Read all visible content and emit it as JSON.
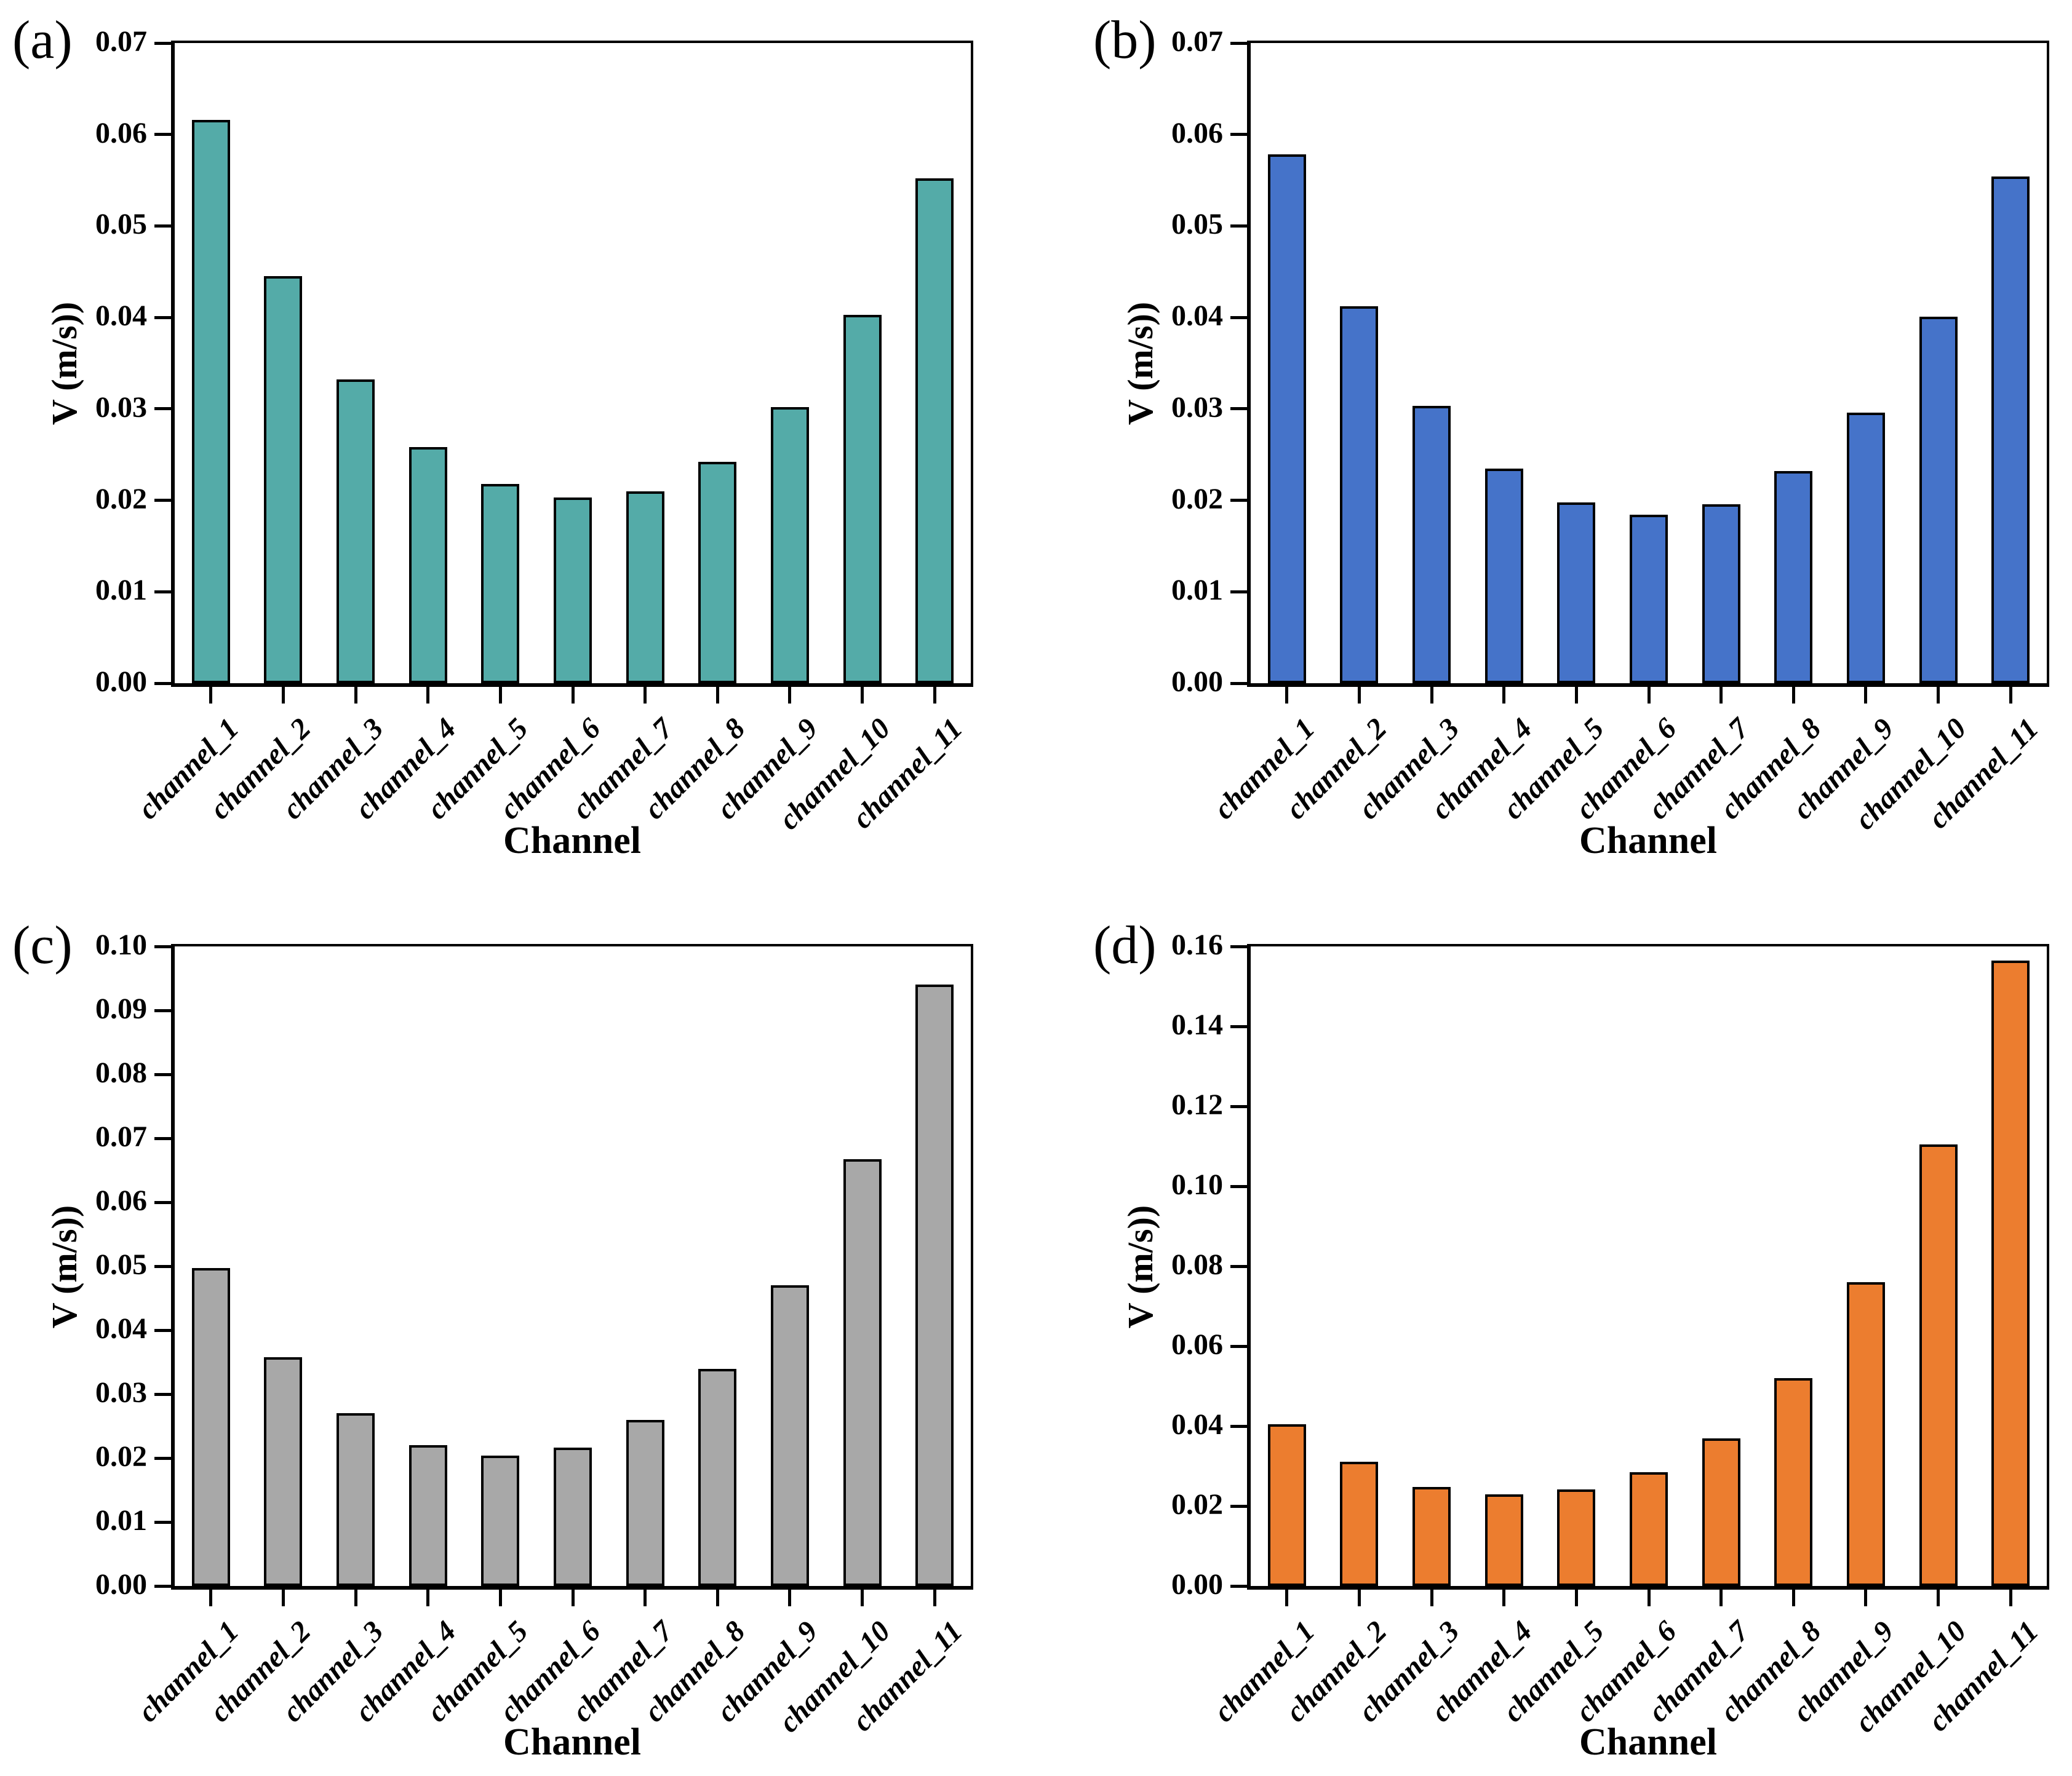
{
  "chart_data": [
    {
      "type": "bar",
      "panel_label": "(a)",
      "xlabel": "Channel",
      "ylabel": "V (m/s))",
      "categories": [
        "channel_1",
        "channel_2",
        "channel_3",
        "channel_4",
        "channel_5",
        "channel_6",
        "channel_7",
        "channel_8",
        "channel_9",
        "channel_10",
        "channel_11"
      ],
      "values": [
        0.0616,
        0.0445,
        0.0332,
        0.0258,
        0.0218,
        0.0203,
        0.021,
        0.0242,
        0.0302,
        0.0403,
        0.0552
      ],
      "ylim": [
        0,
        0.07
      ],
      "ytick_step": 0.01,
      "ytick_decimals": 2,
      "bar_color": "#54ABA8",
      "bar_edge_color": "#000000",
      "grid": false,
      "legend": "none"
    },
    {
      "type": "bar",
      "panel_label": "(b)",
      "xlabel": "Channel",
      "ylabel": "V (m/s))",
      "categories": [
        "channel_1",
        "channel_2",
        "channel_3",
        "channel_4",
        "channel_5",
        "channel_6",
        "channel_7",
        "channel_8",
        "channel_9",
        "channel_10",
        "channel_11"
      ],
      "values": [
        0.0578,
        0.0412,
        0.0303,
        0.0235,
        0.0198,
        0.0184,
        0.0196,
        0.0232,
        0.0296,
        0.0401,
        0.0554
      ],
      "ylim": [
        0,
        0.07
      ],
      "ytick_step": 0.01,
      "ytick_decimals": 2,
      "bar_color": "#4573C9",
      "bar_edge_color": "#000000",
      "grid": false,
      "legend": "none"
    },
    {
      "type": "bar",
      "panel_label": "(c)",
      "xlabel": "Channel",
      "ylabel": "V (m/s))",
      "categories": [
        "channel_1",
        "channel_2",
        "channel_3",
        "channel_4",
        "channel_5",
        "channel_6",
        "channel_7",
        "channel_8",
        "channel_9",
        "channel_10",
        "channel_11"
      ],
      "values": [
        0.0497,
        0.0358,
        0.027,
        0.022,
        0.0204,
        0.0216,
        0.026,
        0.0339,
        0.047,
        0.0667,
        0.094
      ],
      "ylim": [
        0,
        0.1
      ],
      "ytick_step": 0.01,
      "ytick_decimals": 2,
      "bar_color": "#A8A8A8",
      "bar_edge_color": "#000000",
      "grid": false,
      "legend": "none"
    },
    {
      "type": "bar",
      "panel_label": "(d)",
      "xlabel": "Channel",
      "ylabel": "V (m/s))",
      "categories": [
        "channel_1",
        "channel_2",
        "channel_3",
        "channel_4",
        "channel_5",
        "channel_6",
        "channel_7",
        "channel_8",
        "channel_9",
        "channel_10",
        "channel_11"
      ],
      "values": [
        0.0405,
        0.031,
        0.0248,
        0.023,
        0.0242,
        0.0285,
        0.037,
        0.052,
        0.076,
        0.1105,
        0.1565
      ],
      "ylim": [
        0,
        0.16
      ],
      "ytick_step": 0.02,
      "ytick_decimals": 2,
      "bar_color": "#EC7D2F",
      "bar_edge_color": "#000000",
      "grid": false,
      "legend": "none"
    }
  ]
}
